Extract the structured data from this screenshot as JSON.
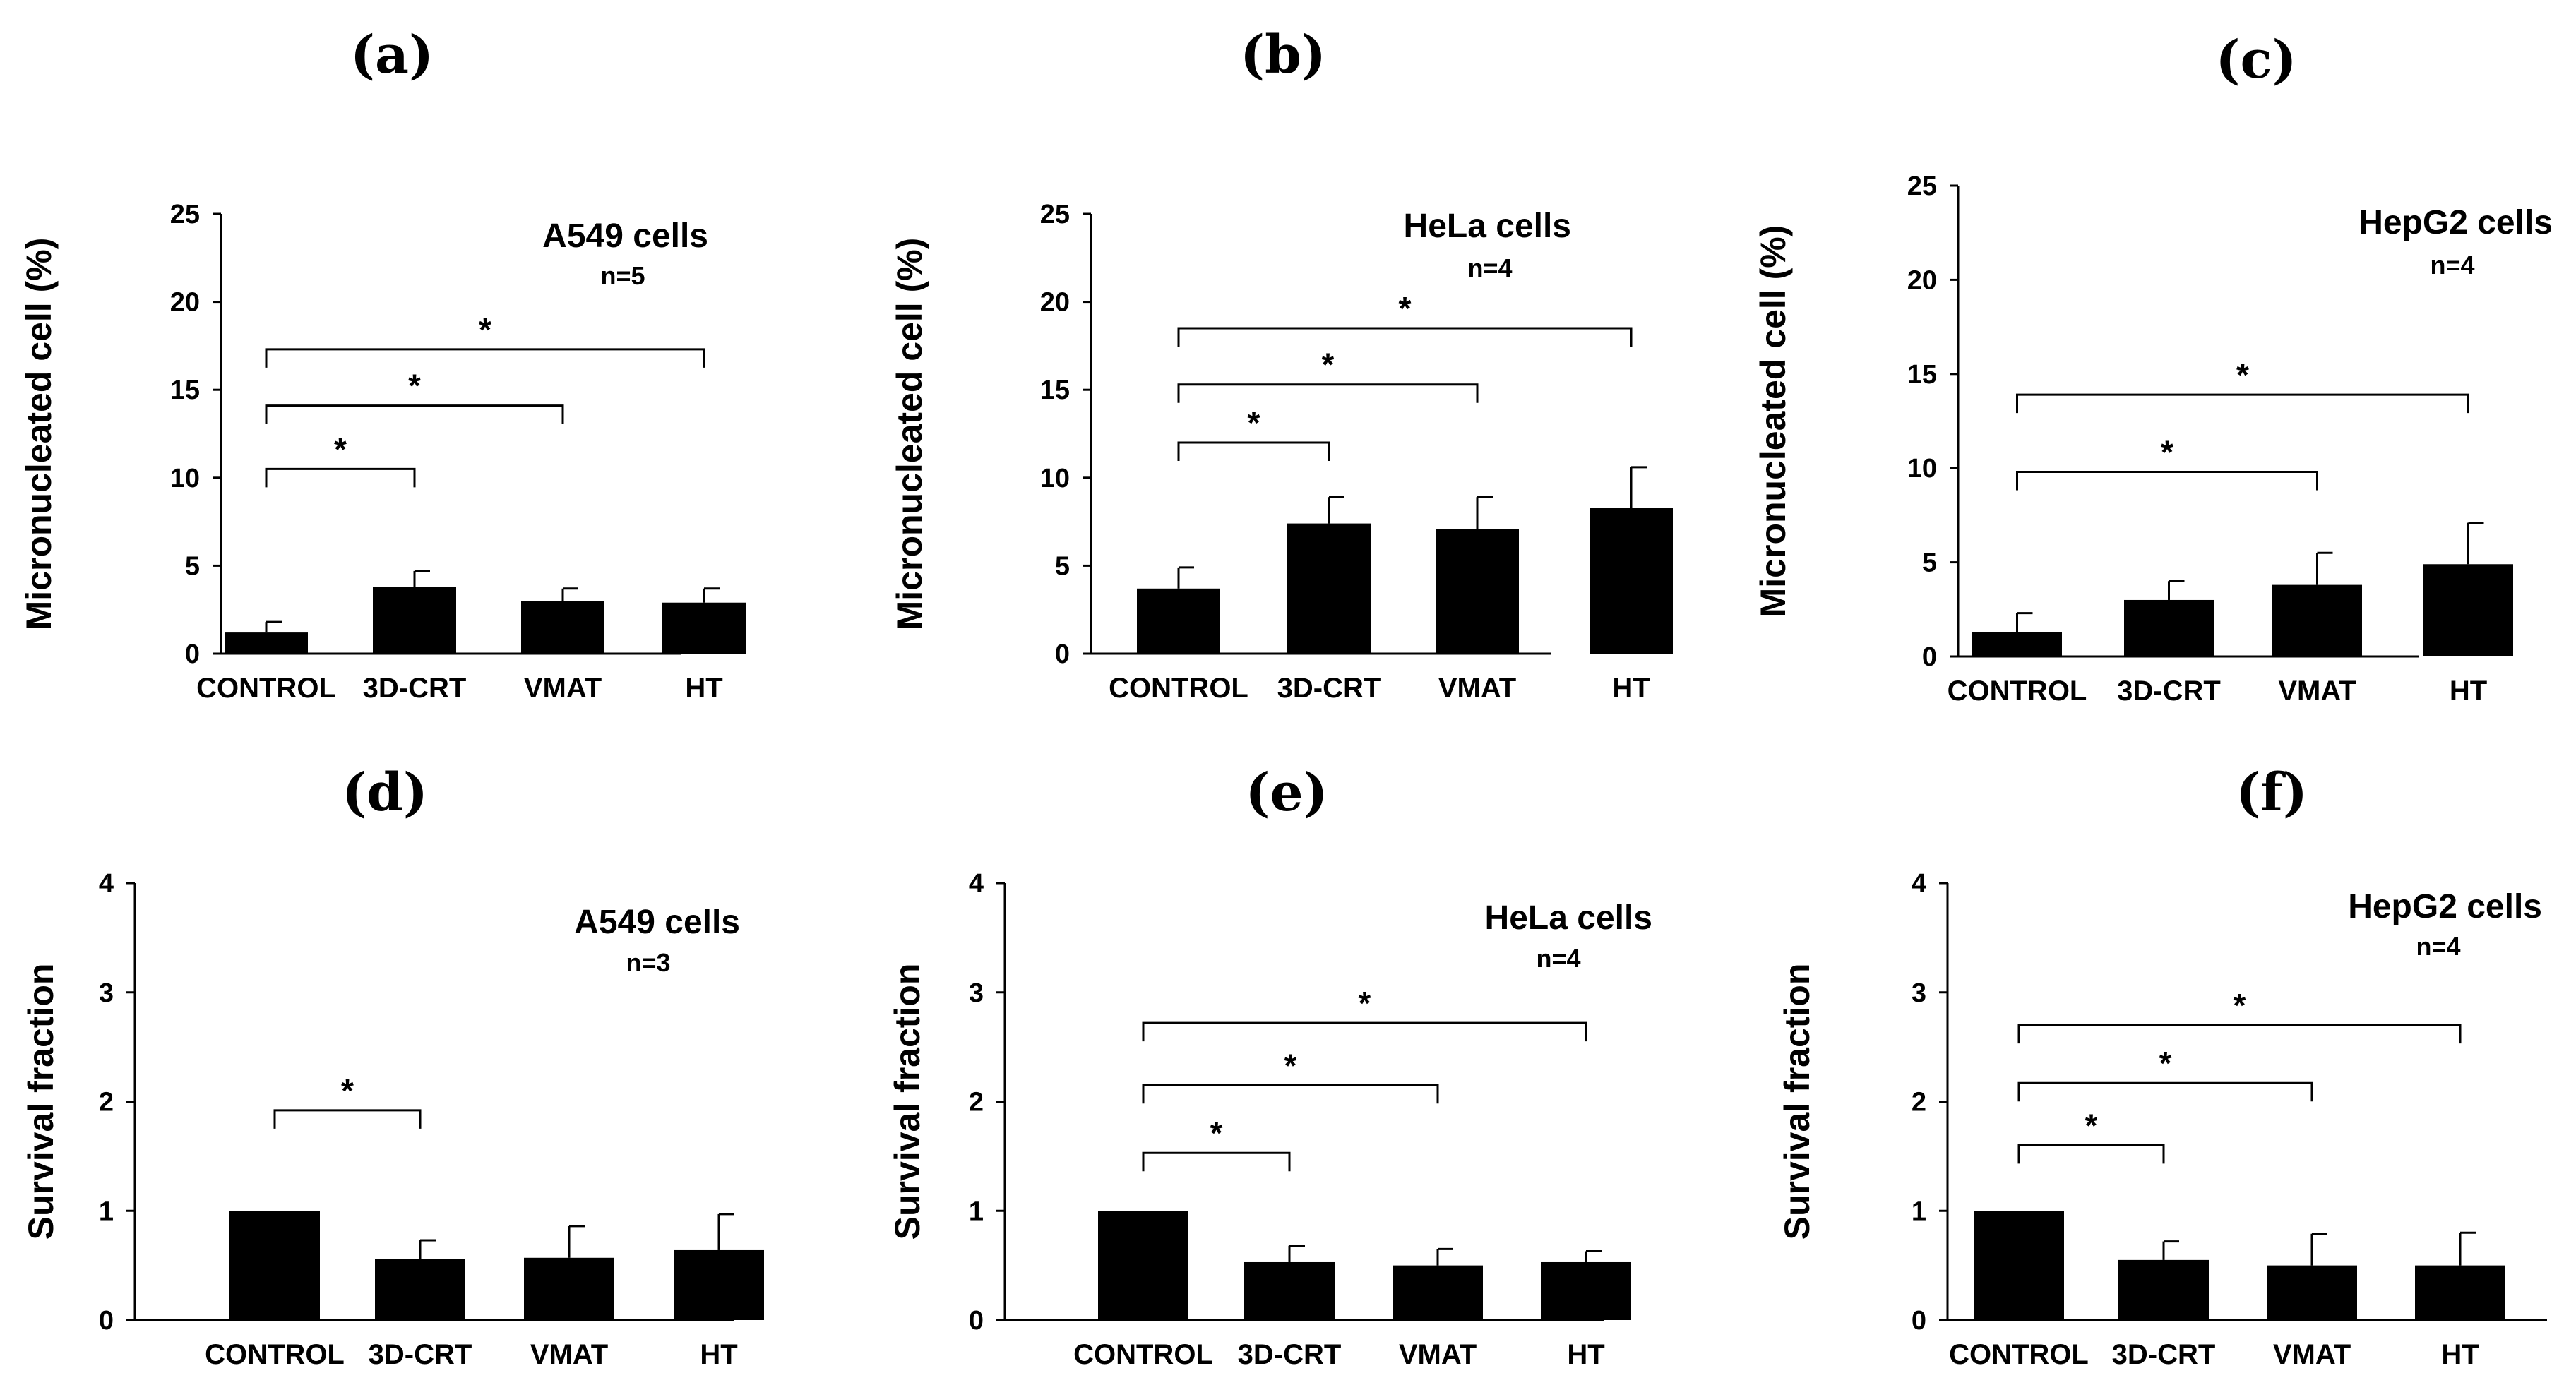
{
  "figure": {
    "categories": [
      "CONTROL",
      "3D-CRT",
      "VMAT",
      "HT"
    ],
    "significance_marker": "*"
  },
  "chart_data": [
    {
      "type": "bar",
      "panel": "(a)",
      "title": "A549 cells",
      "n": "n=5",
      "ylabel": "Micronucleated cell (%)",
      "xlabel": "",
      "ylim": [
        0,
        25
      ],
      "yticks": [
        0,
        5,
        10,
        15,
        20,
        25
      ],
      "categories": [
        "CONTROL",
        "3D-CRT",
        "VMAT",
        "HT"
      ],
      "values": [
        1.2,
        3.8,
        3.0,
        2.9
      ],
      "errors": [
        0.6,
        0.9,
        0.7,
        0.8
      ],
      "comparisons": [
        {
          "from": 0,
          "to": 1,
          "y": 10.5
        },
        {
          "from": 0,
          "to": 2,
          "y": 14.1
        },
        {
          "from": 0,
          "to": 3,
          "y": 17.3
        }
      ]
    },
    {
      "type": "bar",
      "panel": "(b)",
      "title": "HeLa cells",
      "n": "n=4",
      "ylabel": "Micronucleated cell (%)",
      "xlabel": "",
      "ylim": [
        0,
        25
      ],
      "yticks": [
        0,
        5,
        10,
        15,
        20,
        25
      ],
      "categories": [
        "CONTROL",
        "3D-CRT",
        "VMAT",
        "HT"
      ],
      "values": [
        3.7,
        7.4,
        7.1,
        8.3
      ],
      "errors": [
        1.2,
        1.5,
        1.8,
        2.3
      ],
      "comparisons": [
        {
          "from": 0,
          "to": 1,
          "y": 12.0
        },
        {
          "from": 0,
          "to": 2,
          "y": 15.3
        },
        {
          "from": 0,
          "to": 3,
          "y": 18.5
        }
      ]
    },
    {
      "type": "bar",
      "panel": "(c)",
      "title": "HepG2 cells",
      "n": "n=4",
      "ylabel": "Micronucleated cell (%)",
      "xlabel": "",
      "ylim": [
        0,
        25
      ],
      "yticks": [
        0,
        5,
        10,
        15,
        20,
        25
      ],
      "categories": [
        "CONTROL",
        "3D-CRT",
        "VMAT",
        "HT"
      ],
      "values": [
        1.3,
        3.0,
        3.8,
        4.9
      ],
      "errors": [
        1.0,
        1.0,
        1.7,
        2.2
      ],
      "comparisons": [
        {
          "from": 0,
          "to": 2,
          "y": 9.8
        },
        {
          "from": 0,
          "to": 3,
          "y": 13.9
        }
      ]
    },
    {
      "type": "bar",
      "panel": "(d)",
      "title": "A549 cells",
      "n": "n=3",
      "ylabel": "Survival fraction",
      "xlabel": "",
      "ylim": [
        0,
        4
      ],
      "yticks": [
        0,
        1,
        2,
        3,
        4
      ],
      "categories": [
        "CONTROL",
        "3D-CRT",
        "VMAT",
        "HT"
      ],
      "values": [
        1.0,
        0.56,
        0.57,
        0.64
      ],
      "errors": [
        0.0,
        0.17,
        0.29,
        0.33
      ],
      "comparisons": [
        {
          "from": 0,
          "to": 1,
          "y": 1.92
        }
      ]
    },
    {
      "type": "bar",
      "panel": "(e)",
      "title": "HeLa cells",
      "n": "n=4",
      "ylabel": "Survival fraction",
      "xlabel": "",
      "ylim": [
        0,
        4
      ],
      "yticks": [
        0,
        1,
        2,
        3,
        4
      ],
      "categories": [
        "CONTROL",
        "3D-CRT",
        "VMAT",
        "HT"
      ],
      "values": [
        1.0,
        0.53,
        0.5,
        0.53
      ],
      "errors": [
        0.0,
        0.15,
        0.15,
        0.1
      ],
      "comparisons": [
        {
          "from": 0,
          "to": 1,
          "y": 1.53
        },
        {
          "from": 0,
          "to": 2,
          "y": 2.15
        },
        {
          "from": 0,
          "to": 3,
          "y": 2.72
        }
      ]
    },
    {
      "type": "bar",
      "panel": "(f)",
      "title": "HepG2 cells",
      "n": "n=4",
      "ylabel": "Survival fraction",
      "xlabel": "",
      "ylim": [
        0,
        4
      ],
      "yticks": [
        0,
        1,
        2,
        3,
        4
      ],
      "categories": [
        "CONTROL",
        "3D-CRT",
        "VMAT",
        "HT"
      ],
      "values": [
        1.0,
        0.55,
        0.5,
        0.5
      ],
      "errors": [
        0.0,
        0.17,
        0.29,
        0.3
      ],
      "comparisons": [
        {
          "from": 0,
          "to": 1,
          "y": 1.6
        },
        {
          "from": 0,
          "to": 2,
          "y": 2.17
        },
        {
          "from": 0,
          "to": 3,
          "y": 2.7
        }
      ]
    }
  ]
}
